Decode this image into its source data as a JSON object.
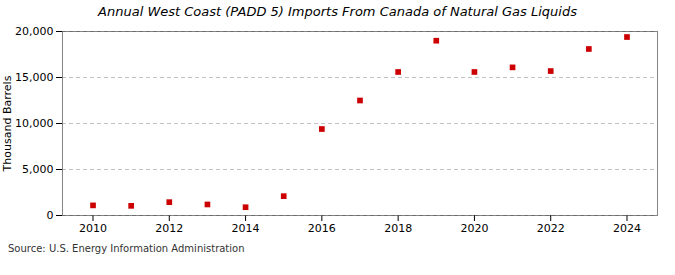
{
  "chart_data": {
    "type": "scatter",
    "title": "Annual West Coast (PADD 5) Imports From Canada of Natural Gas Liquids",
    "ylabel": "Thousand Barrels",
    "source": "Source: U.S. Energy Information Administration",
    "x": [
      2010,
      2011,
      2012,
      2013,
      2014,
      2015,
      2016,
      2017,
      2018,
      2019,
      2020,
      2021,
      2022,
      2023,
      2024
    ],
    "values": [
      1100,
      1050,
      1450,
      1200,
      900,
      2100,
      9400,
      12500,
      15600,
      19000,
      15600,
      16100,
      15700,
      18100,
      19400
    ],
    "color": "#cc0000",
    "marker": "square",
    "xlim": [
      2009.2,
      2024.8
    ],
    "xticks": [
      2010,
      2012,
      2014,
      2016,
      2018,
      2020,
      2022,
      2024
    ],
    "ylim": [
      0,
      20000
    ],
    "yticks": [
      0,
      {
        "value": 5000,
        "label": "5,000"
      },
      {
        "value": 10000,
        "label": "10,000"
      },
      {
        "value": 15000,
        "label": "15,000"
      },
      {
        "value": 20000,
        "label": "20,000"
      }
    ],
    "grid": "y"
  }
}
